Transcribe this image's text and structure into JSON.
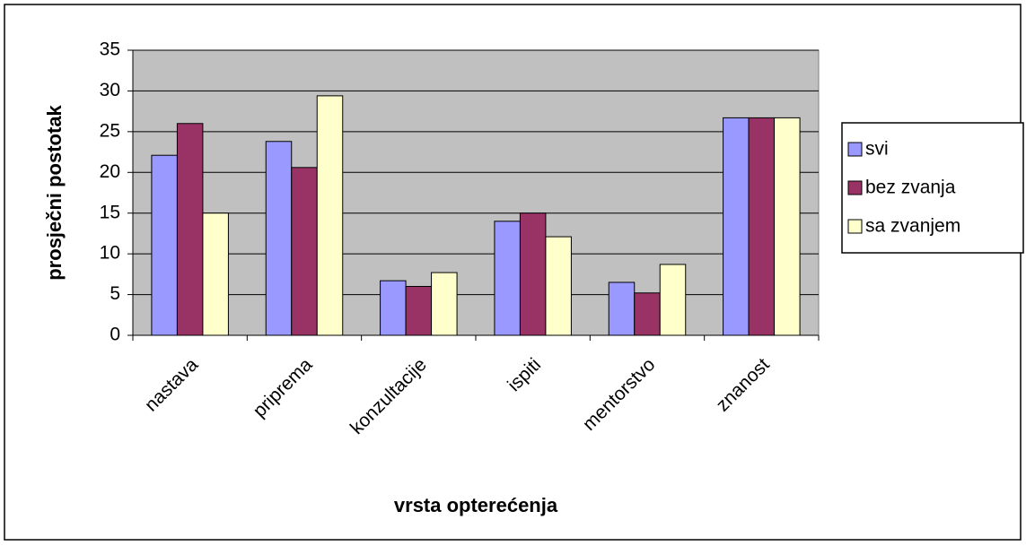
{
  "chart_data": {
    "type": "bar",
    "x_label": "vrsta opterećenja",
    "y_label": "prosječni postotak",
    "categories": [
      "nastava",
      "priprema",
      "konzultacije",
      "ispiti",
      "mentorstvo",
      "znanost"
    ],
    "series": [
      {
        "name": "svi",
        "color": "#9999ff",
        "values": [
          22.1,
          23.8,
          6.7,
          14,
          6.5,
          26.7
        ]
      },
      {
        "name": "bez zvanja",
        "color": "#993366",
        "values": [
          26,
          20.6,
          6,
          15,
          5.2,
          26.7
        ]
      },
      {
        "name": "sa zvanjem",
        "color": "#ffffcc",
        "values": [
          15,
          29.4,
          7.7,
          12.1,
          8.7,
          26.7
        ]
      }
    ],
    "ylim": [
      0,
      35
    ],
    "yticks": [
      0,
      5,
      10,
      15,
      20,
      25,
      30,
      35
    ],
    "grid": true,
    "legend": "right",
    "plot_background": "#c0c0c0"
  }
}
